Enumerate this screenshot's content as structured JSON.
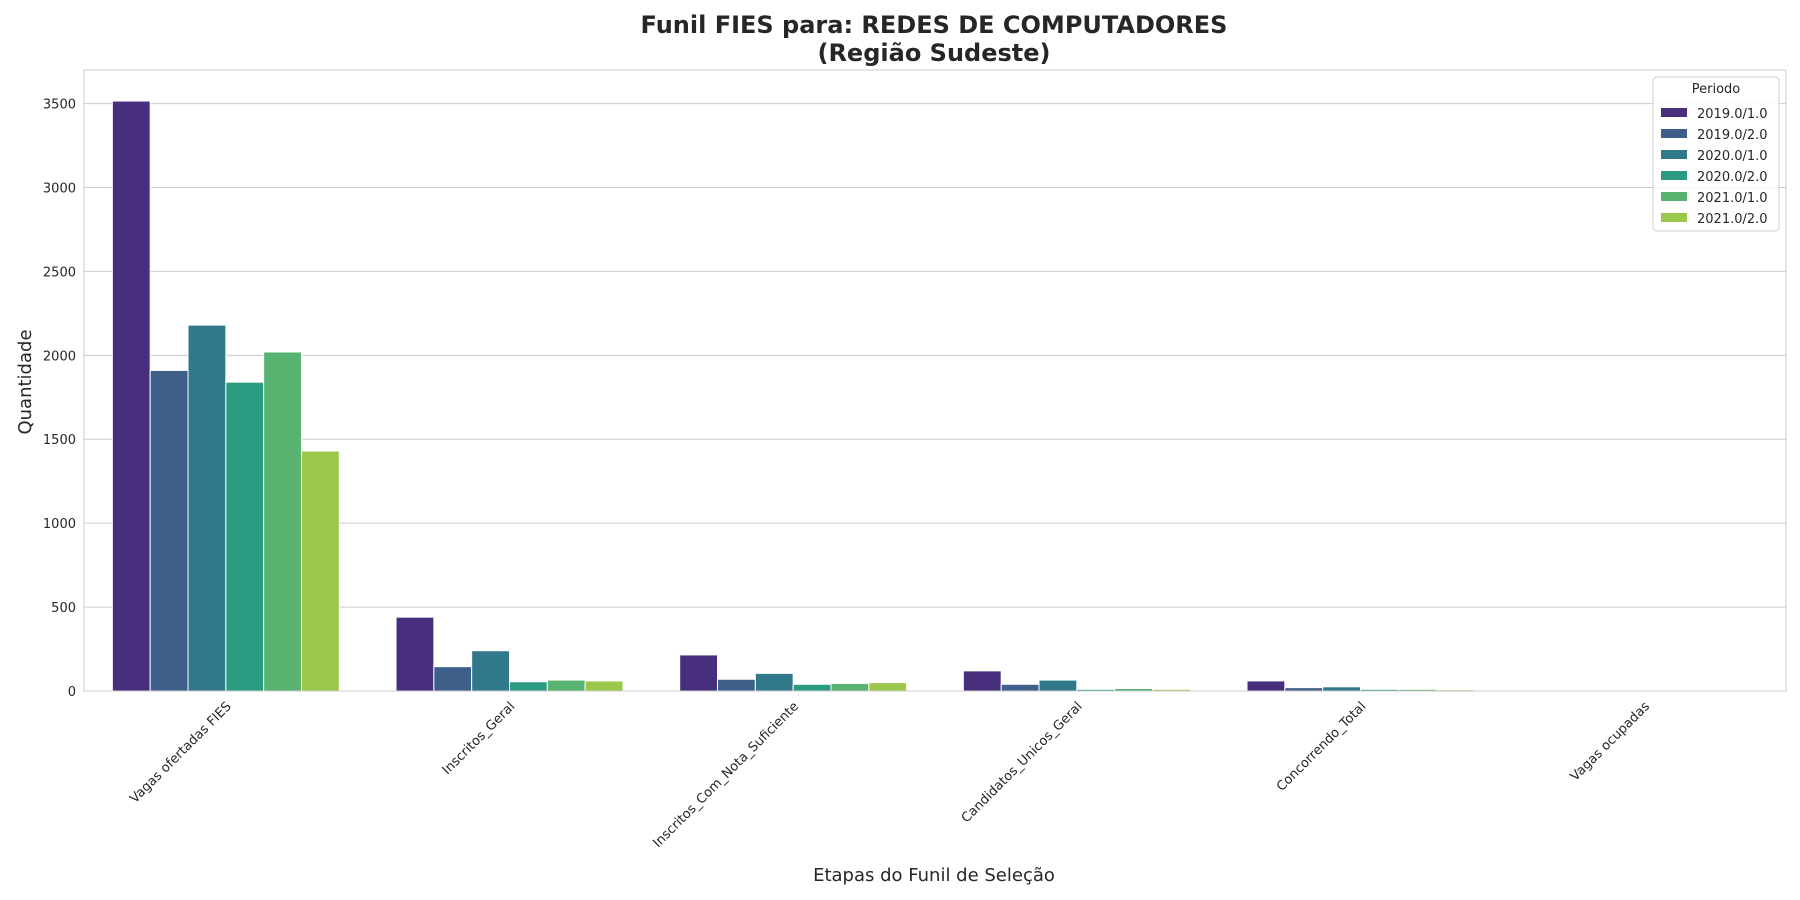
{
  "chart_data": {
    "type": "bar",
    "title": "Funil FIES para: REDES DE COMPUTADORES",
    "subtitle": "(Região Sudeste)",
    "xlabel": "Etapas do Funil de Seleção",
    "ylabel": "Quantidade",
    "ylim": [
      0,
      3700
    ],
    "yticks": [
      0,
      500,
      1000,
      1500,
      2000,
      2500,
      3000,
      3500
    ],
    "grid": "horizontal",
    "legend_title": "Periodo",
    "legend_position": "top-right",
    "categories": [
      "Vagas ofertadas FIES",
      "Inscritos_Geral",
      "Inscritos_Com_Nota_Suficiente",
      "Candidatos_Unicos_Geral",
      "Concorrendo_Total",
      "Vagas ocupadas"
    ],
    "series": [
      {
        "name": "2019.0/1.0",
        "color": "#472f7d",
        "values": [
          3515,
          440,
          215,
          120,
          60,
          0
        ]
      },
      {
        "name": "2019.0/2.0",
        "color": "#3e5f8a",
        "values": [
          1910,
          145,
          70,
          40,
          20,
          0
        ]
      },
      {
        "name": "2020.0/1.0",
        "color": "#30788a",
        "values": [
          2180,
          240,
          105,
          65,
          25,
          0
        ]
      },
      {
        "name": "2020.0/2.0",
        "color": "#2a9a80",
        "values": [
          1840,
          55,
          40,
          10,
          10,
          0
        ]
      },
      {
        "name": "2021.0/1.0",
        "color": "#57b36f",
        "values": [
          2020,
          65,
          45,
          15,
          10,
          0
        ]
      },
      {
        "name": "2021.0/2.0",
        "color": "#9bc84b",
        "values": [
          1430,
          60,
          50,
          10,
          8,
          0
        ]
      }
    ]
  }
}
